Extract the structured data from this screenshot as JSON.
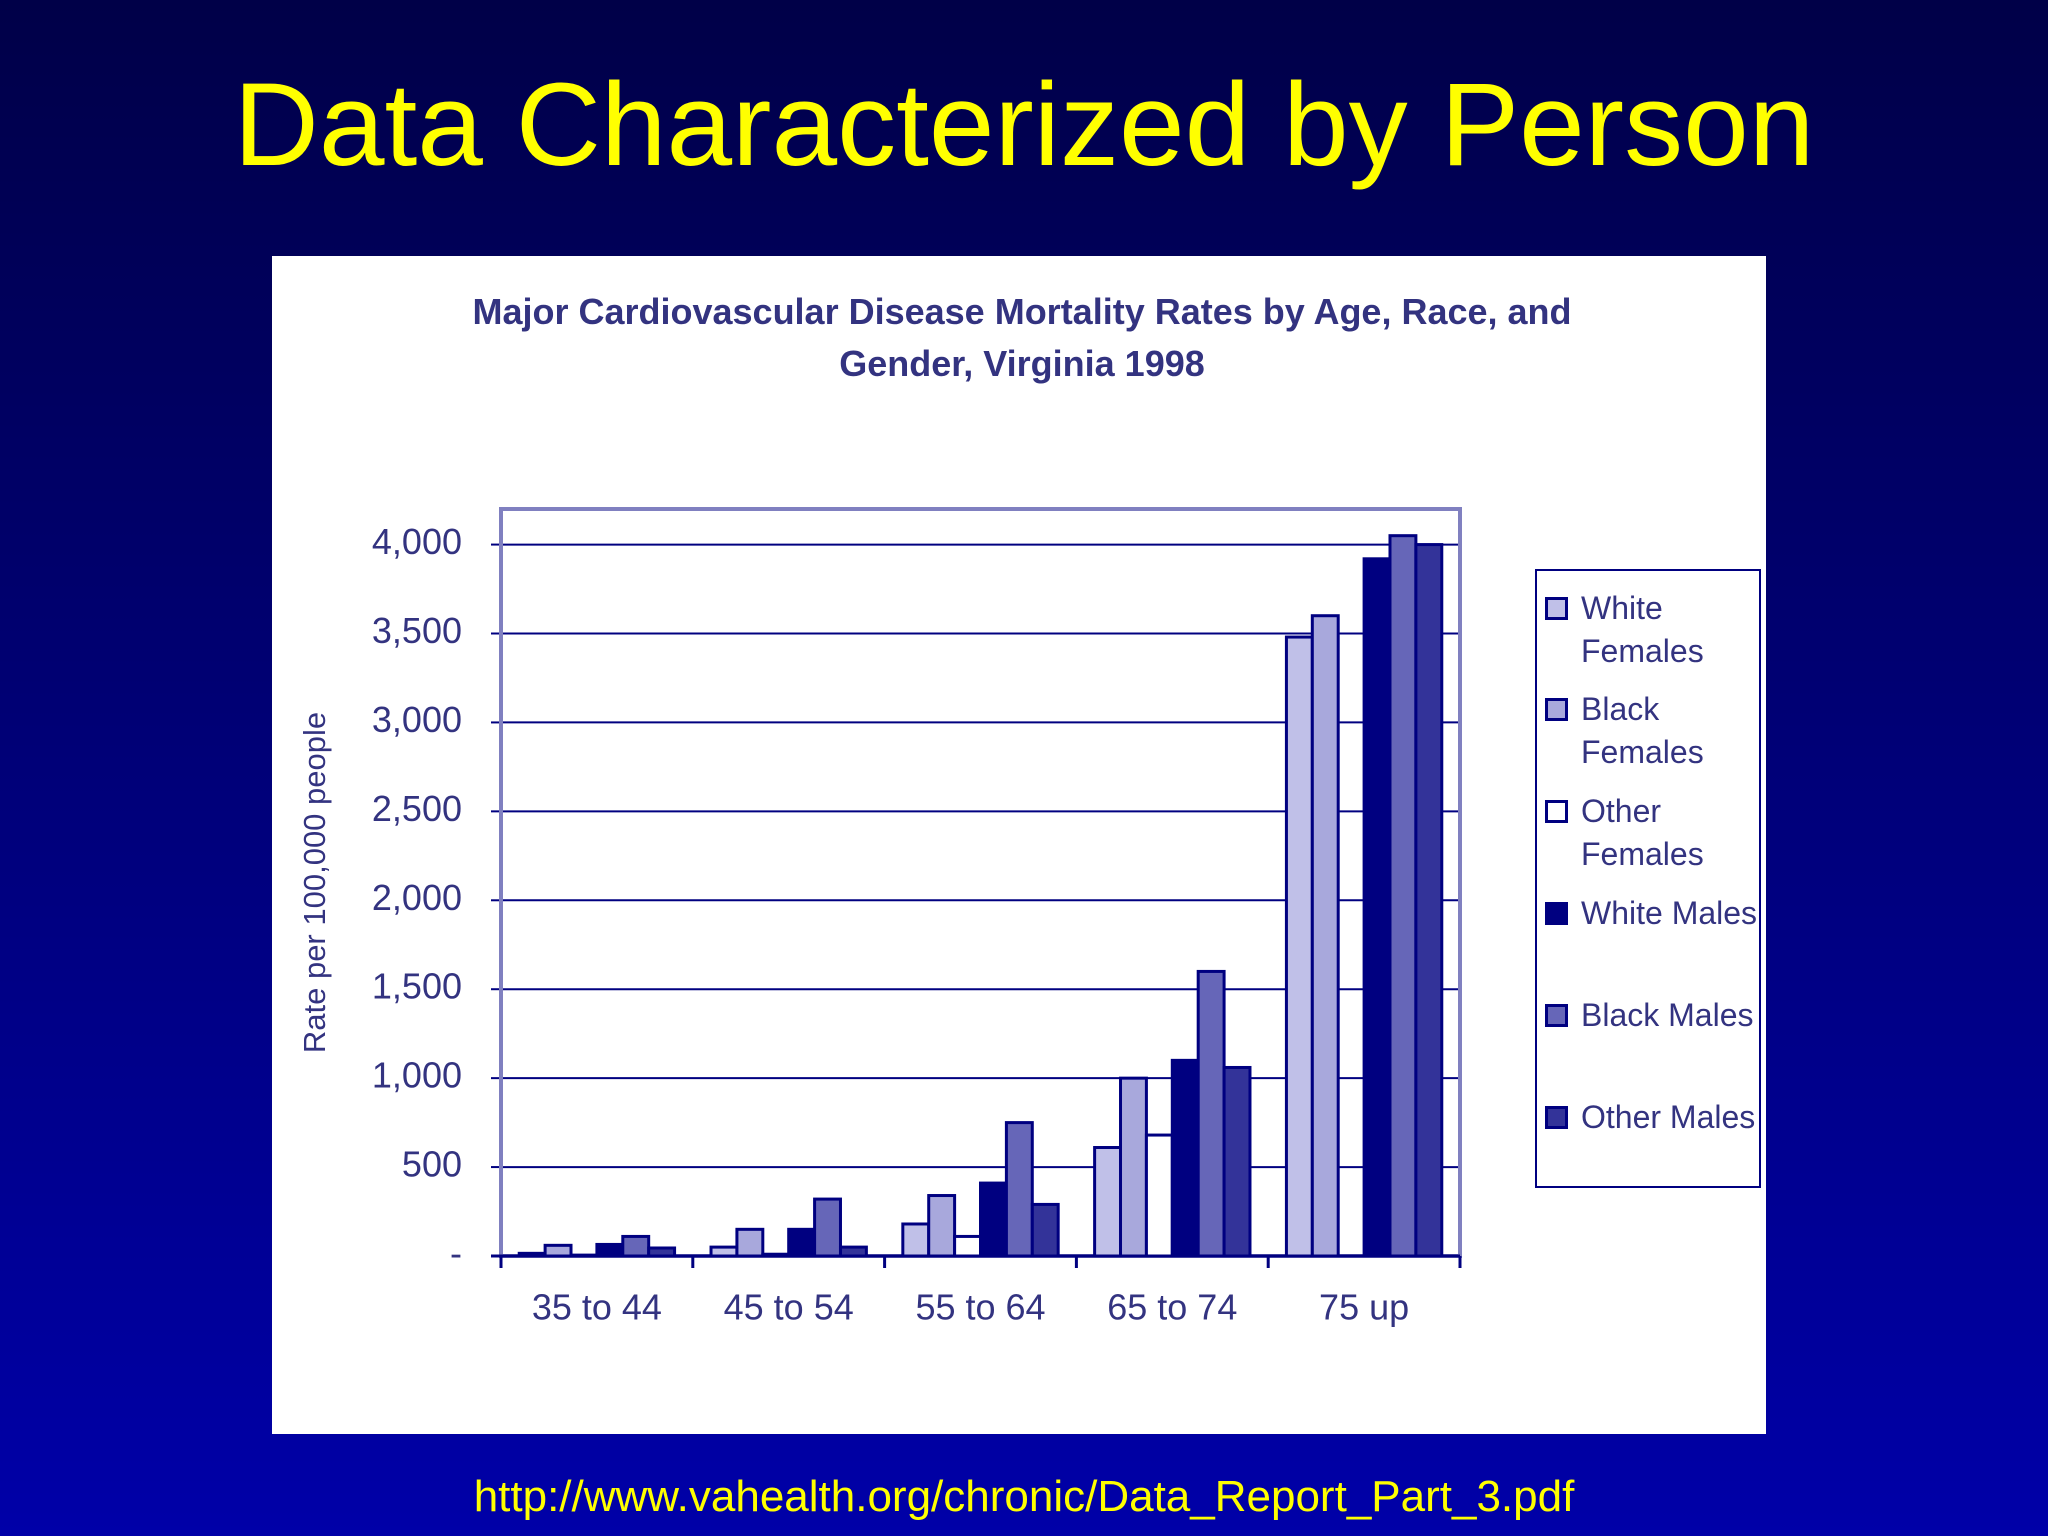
{
  "slide_title": "Data Characterized by Person",
  "footer": "http://www.vahealth.org/chronic/Data_Report_Part_3.pdf",
  "chart_data": {
    "type": "bar",
    "title": "Major Cardiovascular Disease Mortality Rates by Age, Race, and Gender, Virginia 1998",
    "y_label": "Rate per 100,000 people",
    "categories": [
      "35 to 44",
      "45 to 54",
      "55 to 64",
      "65 to 74",
      "75 up"
    ],
    "series": [
      {
        "name": "White Females",
        "color": "#c0c0e8",
        "values": [
          15,
          50,
          180,
          610,
          3480
        ]
      },
      {
        "name": "Black Females",
        "color": "#a8a8dc",
        "values": [
          60,
          150,
          340,
          1000,
          3600
        ]
      },
      {
        "name": "Other Females",
        "color": "#ffffff",
        "values": [
          5,
          10,
          110,
          680,
          0
        ]
      },
      {
        "name": "White Males",
        "color": "#000080",
        "values": [
          65,
          150,
          410,
          1100,
          3920
        ]
      },
      {
        "name": "Black Males",
        "color": "#6666b8",
        "values": [
          110,
          320,
          750,
          1600,
          4050
        ]
      },
      {
        "name": "Other Males",
        "color": "#333399",
        "values": [
          45,
          50,
          290,
          1060,
          4000
        ]
      }
    ],
    "ylim": [
      0,
      4200
    ],
    "yticks": [
      {
        "value": 0,
        "label": "-"
      },
      500,
      {
        "value": 1000,
        "label": "1,000"
      },
      {
        "value": 1500,
        "label": "1,500"
      },
      {
        "value": 2000,
        "label": "2,000"
      },
      {
        "value": 2500,
        "label": "2,500"
      },
      {
        "value": 3000,
        "label": "3,000"
      },
      {
        "value": 3500,
        "label": "3,500"
      },
      {
        "value": 4000,
        "label": "4,000"
      }
    ],
    "grid": true,
    "legend": "right"
  }
}
